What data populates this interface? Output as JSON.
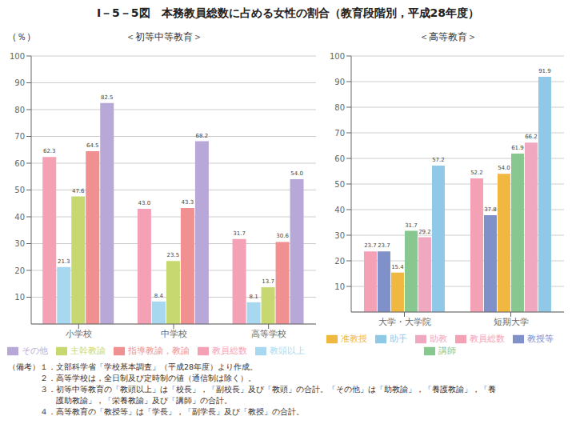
{
  "title": "I－5－5図　本務教員総数に占める女性の割合（教育段階別，平成28年度）",
  "chart_data": [
    {
      "type": "bar",
      "subtitle": "＜初等中等教育＞",
      "ylabel": "（％）",
      "categories": [
        "小学校",
        "中学校",
        "高等学校"
      ],
      "series": [
        {
          "name": "教員総数",
          "color": "#f4a0b5",
          "values": [
            62.3,
            43.0,
            31.7
          ],
          "value_labels": [
            "62.3",
            "43.0",
            "31.7"
          ]
        },
        {
          "name": "教頭以上",
          "color": "#a8d8f0",
          "values": [
            21.3,
            8.4,
            8.1
          ]
        },
        {
          "name": "主幹教諭",
          "color": "#c8d870",
          "values": [
            47.6,
            23.5,
            13.7
          ]
        },
        {
          "name": "指導教諭，教諭",
          "color": "#f09090",
          "values": [
            64.5,
            43.3,
            30.6
          ]
        },
        {
          "name": "その他",
          "color": "#b8a8d8",
          "values": [
            82.5,
            68.2,
            54.0
          ],
          "value_labels": [
            "82.5",
            "68.2",
            "54.0"
          ]
        }
      ],
      "ylim": [
        0,
        100
      ],
      "yticks": [
        10,
        20,
        30,
        40,
        50,
        60,
        70,
        80,
        90,
        100
      ],
      "grid": true,
      "data_labels": true,
      "legend": "bottom"
    },
    {
      "type": "bar",
      "subtitle": "＜高等教育＞",
      "categories": [
        "大学・大学院",
        "短期大学"
      ],
      "series": [
        {
          "name": "教員総数",
          "color": "#f4a0b5",
          "values": [
            23.7,
            52.2
          ]
        },
        {
          "name": "教授等",
          "color": "#8090c8",
          "values": [
            23.7,
            37.8
          ]
        },
        {
          "name": "准教授",
          "color": "#f0b840",
          "values": [
            15.4,
            54.0
          ],
          "value_labels": [
            "15.4",
            "54.0"
          ]
        },
        {
          "name": "講師",
          "color": "#88c890",
          "values": [
            31.7,
            61.9
          ]
        },
        {
          "name": "助教",
          "color": "#f0a8c0",
          "values": [
            29.2,
            66.2
          ]
        },
        {
          "name": "助手",
          "color": "#90c8e8",
          "values": [
            57.2,
            91.9
          ]
        }
      ],
      "ylim": [
        0,
        100
      ],
      "yticks": [
        10,
        20,
        30,
        40,
        50,
        60,
        70,
        80,
        90,
        100
      ],
      "grid": true,
      "data_labels": true,
      "legend": "bottom"
    }
  ],
  "annotations": [
    "（備考）１．文部科学省「学校基本調査」（平成28年度）より作成。",
    "　　　　２．高等学校は，全日制及び定時制の値（通信制は除く）。",
    "　　　　３．初等中等教育の「教頭以上」は「校長」，「副校長」及び「教頭」の合計。「その他」は「助教諭」，「養護教諭」，「養",
    "　　　　　　護助教諭」，「栄養教諭」及び「講師」の合計。",
    "　　　　４．高等教育の「教授等」は「学長」，「副学長」及び「教授」の合計。"
  ]
}
